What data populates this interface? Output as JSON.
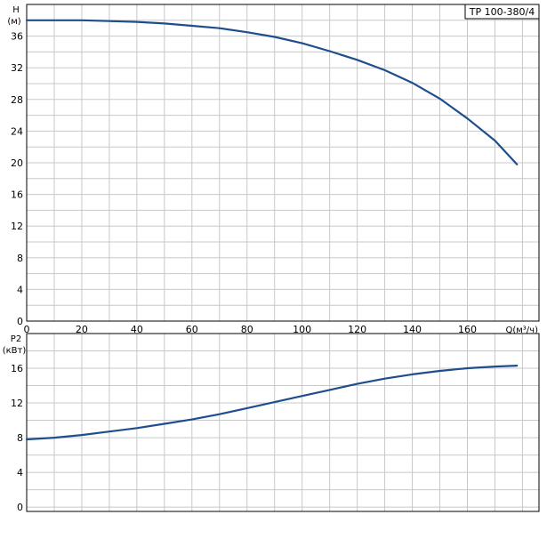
{
  "chart_data": [
    {
      "type": "line",
      "title": "",
      "ylabel": "H",
      "yunit": "(м)",
      "xlabel": "Q(м³/ч)",
      "legend": "TP 100-380/4",
      "legend_position": "top-right",
      "grid": true,
      "xlim": [
        0,
        186
      ],
      "ylim": [
        0,
        40
      ],
      "xticks": [
        0,
        20,
        40,
        60,
        80,
        100,
        120,
        140,
        160
      ],
      "yticks": [
        0,
        4,
        8,
        12,
        16,
        20,
        24,
        28,
        32,
        36
      ],
      "line_color": "#1f4e8c",
      "series": [
        {
          "x": [
            0,
            10,
            20,
            30,
            40,
            50,
            60,
            70,
            80,
            90,
            100,
            110,
            120,
            130,
            140,
            150,
            160,
            170,
            178
          ],
          "y": [
            38.0,
            38.0,
            38.0,
            37.9,
            37.8,
            37.6,
            37.3,
            37.0,
            36.5,
            35.9,
            35.1,
            34.1,
            33.0,
            31.7,
            30.1,
            28.1,
            25.6,
            22.8,
            19.8
          ]
        }
      ]
    },
    {
      "type": "line",
      "title": "",
      "ylabel": "P2",
      "yunit": "(кВт)",
      "grid": true,
      "xlim": [
        0,
        186
      ],
      "ylim": [
        -0.5,
        20
      ],
      "yticks": [
        0,
        4,
        8,
        12,
        16
      ],
      "line_color": "#1f4e8c",
      "series": [
        {
          "x": [
            0,
            10,
            20,
            30,
            40,
            50,
            60,
            70,
            80,
            90,
            100,
            110,
            120,
            130,
            140,
            150,
            160,
            170,
            178
          ],
          "y": [
            7.8,
            8.0,
            8.3,
            8.7,
            9.1,
            9.6,
            10.1,
            10.7,
            11.4,
            12.1,
            12.8,
            13.5,
            14.2,
            14.8,
            15.3,
            15.7,
            16.0,
            16.2,
            16.3
          ]
        }
      ]
    }
  ]
}
